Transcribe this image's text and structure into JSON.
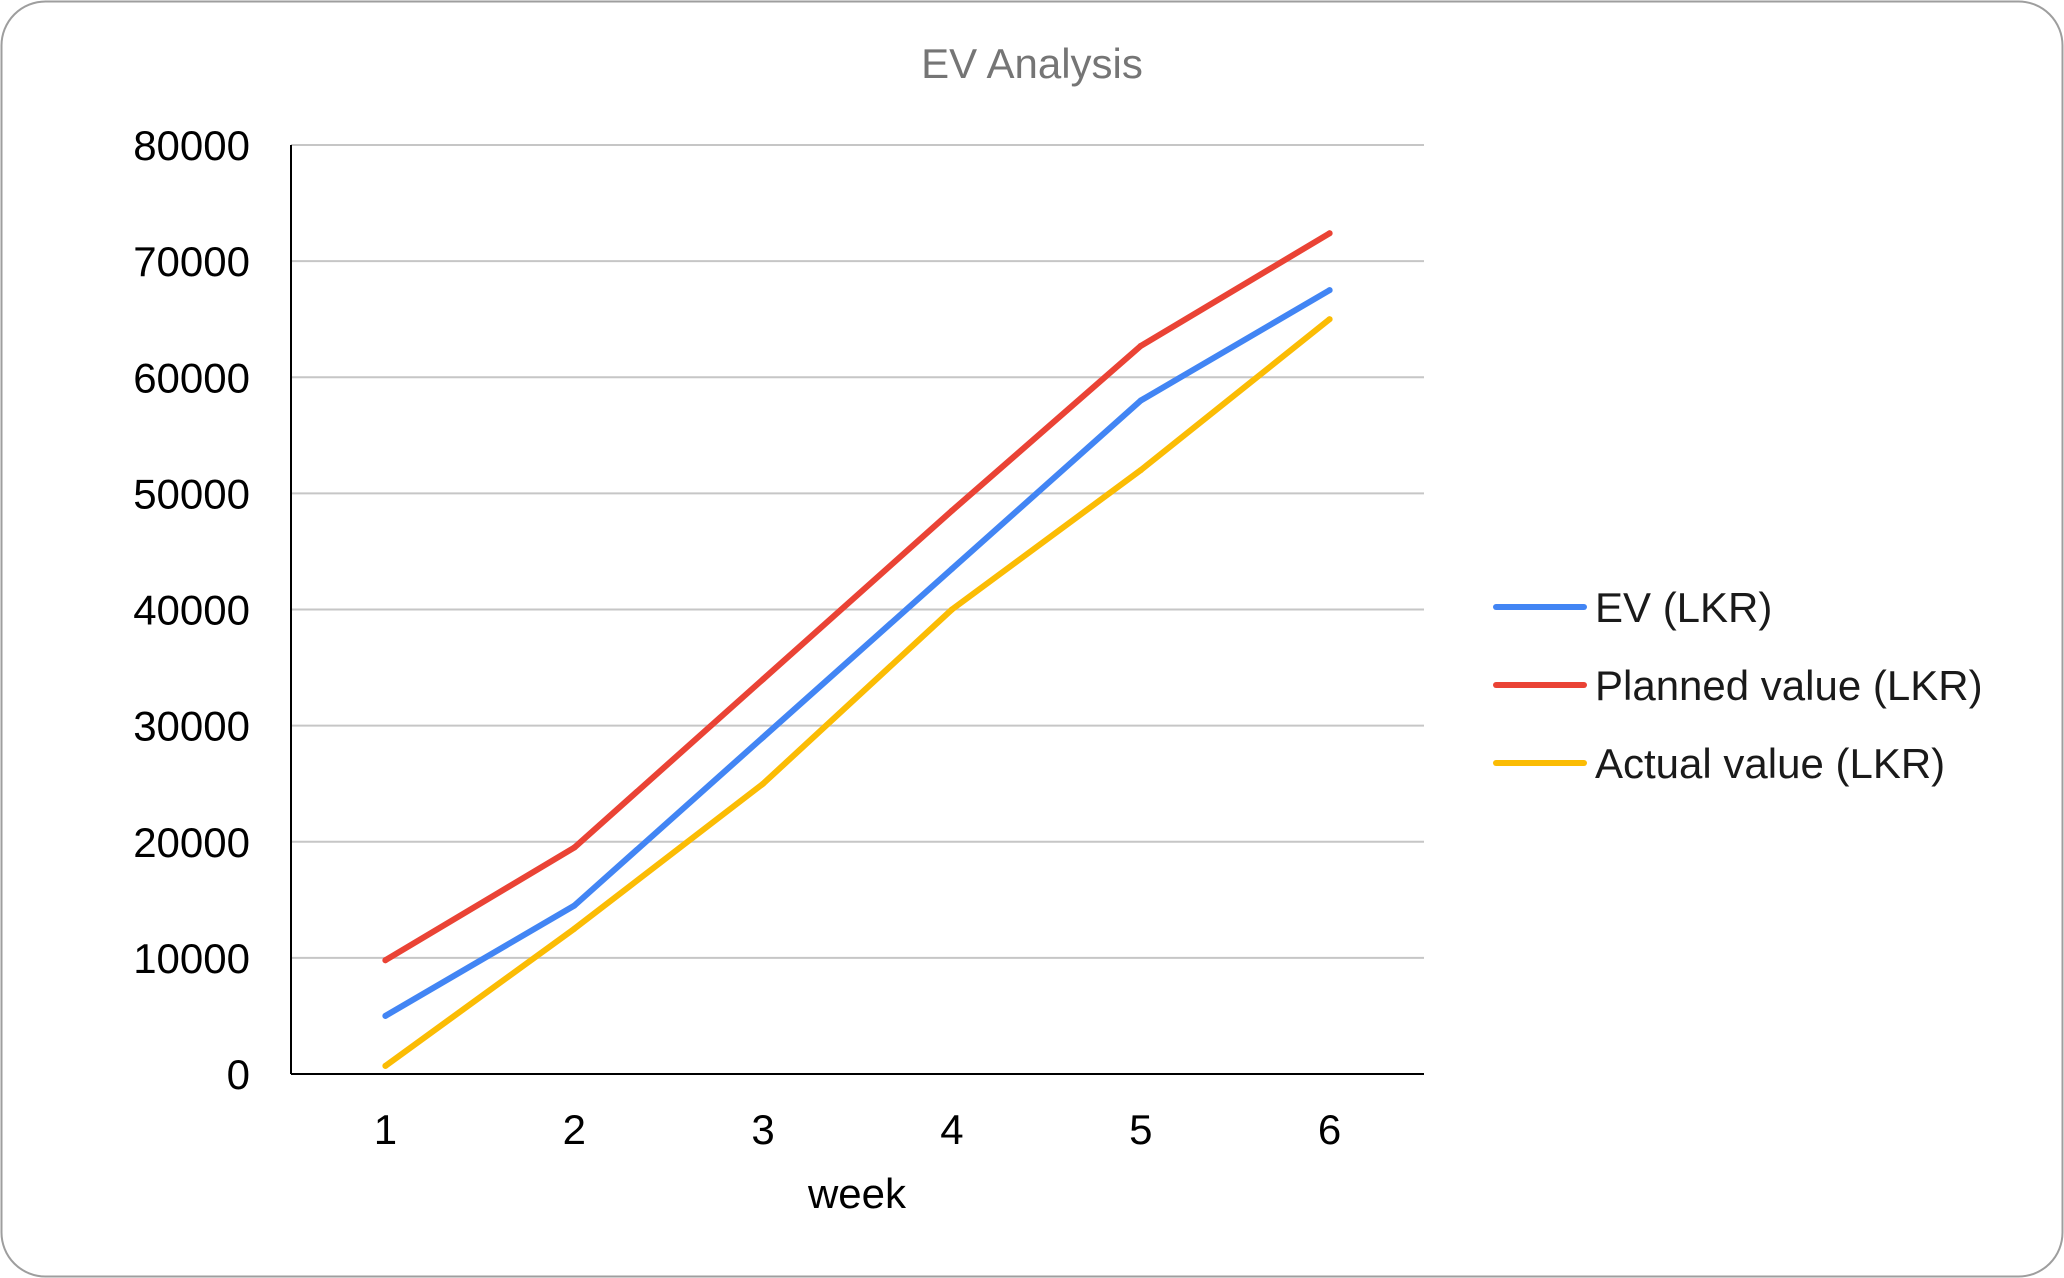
{
  "chart_data": {
    "type": "line",
    "title": "EV Analysis",
    "xlabel": "week",
    "ylabel": "",
    "categories": [
      "1",
      "2",
      "3",
      "4",
      "5",
      "6"
    ],
    "yticks": [
      "0",
      "10000",
      "20000",
      "30000",
      "40000",
      "50000",
      "60000",
      "70000",
      "80000"
    ],
    "ylim": [
      0,
      80000
    ],
    "grid": true,
    "legend_position": "right",
    "series": [
      {
        "name": "EV (LKR)",
        "color": "#4285f4",
        "values": [
          5000,
          14500,
          29000,
          43500,
          58000,
          67500
        ]
      },
      {
        "name": "Planned value (LKR)",
        "color": "#ea4335",
        "values": [
          9800,
          19500,
          34000,
          48500,
          62700,
          72400
        ]
      },
      {
        "name": "Actual value (LKR)",
        "color": "#fbbc04",
        "values": [
          700,
          12500,
          25000,
          40000,
          52000,
          65000
        ]
      }
    ]
  }
}
